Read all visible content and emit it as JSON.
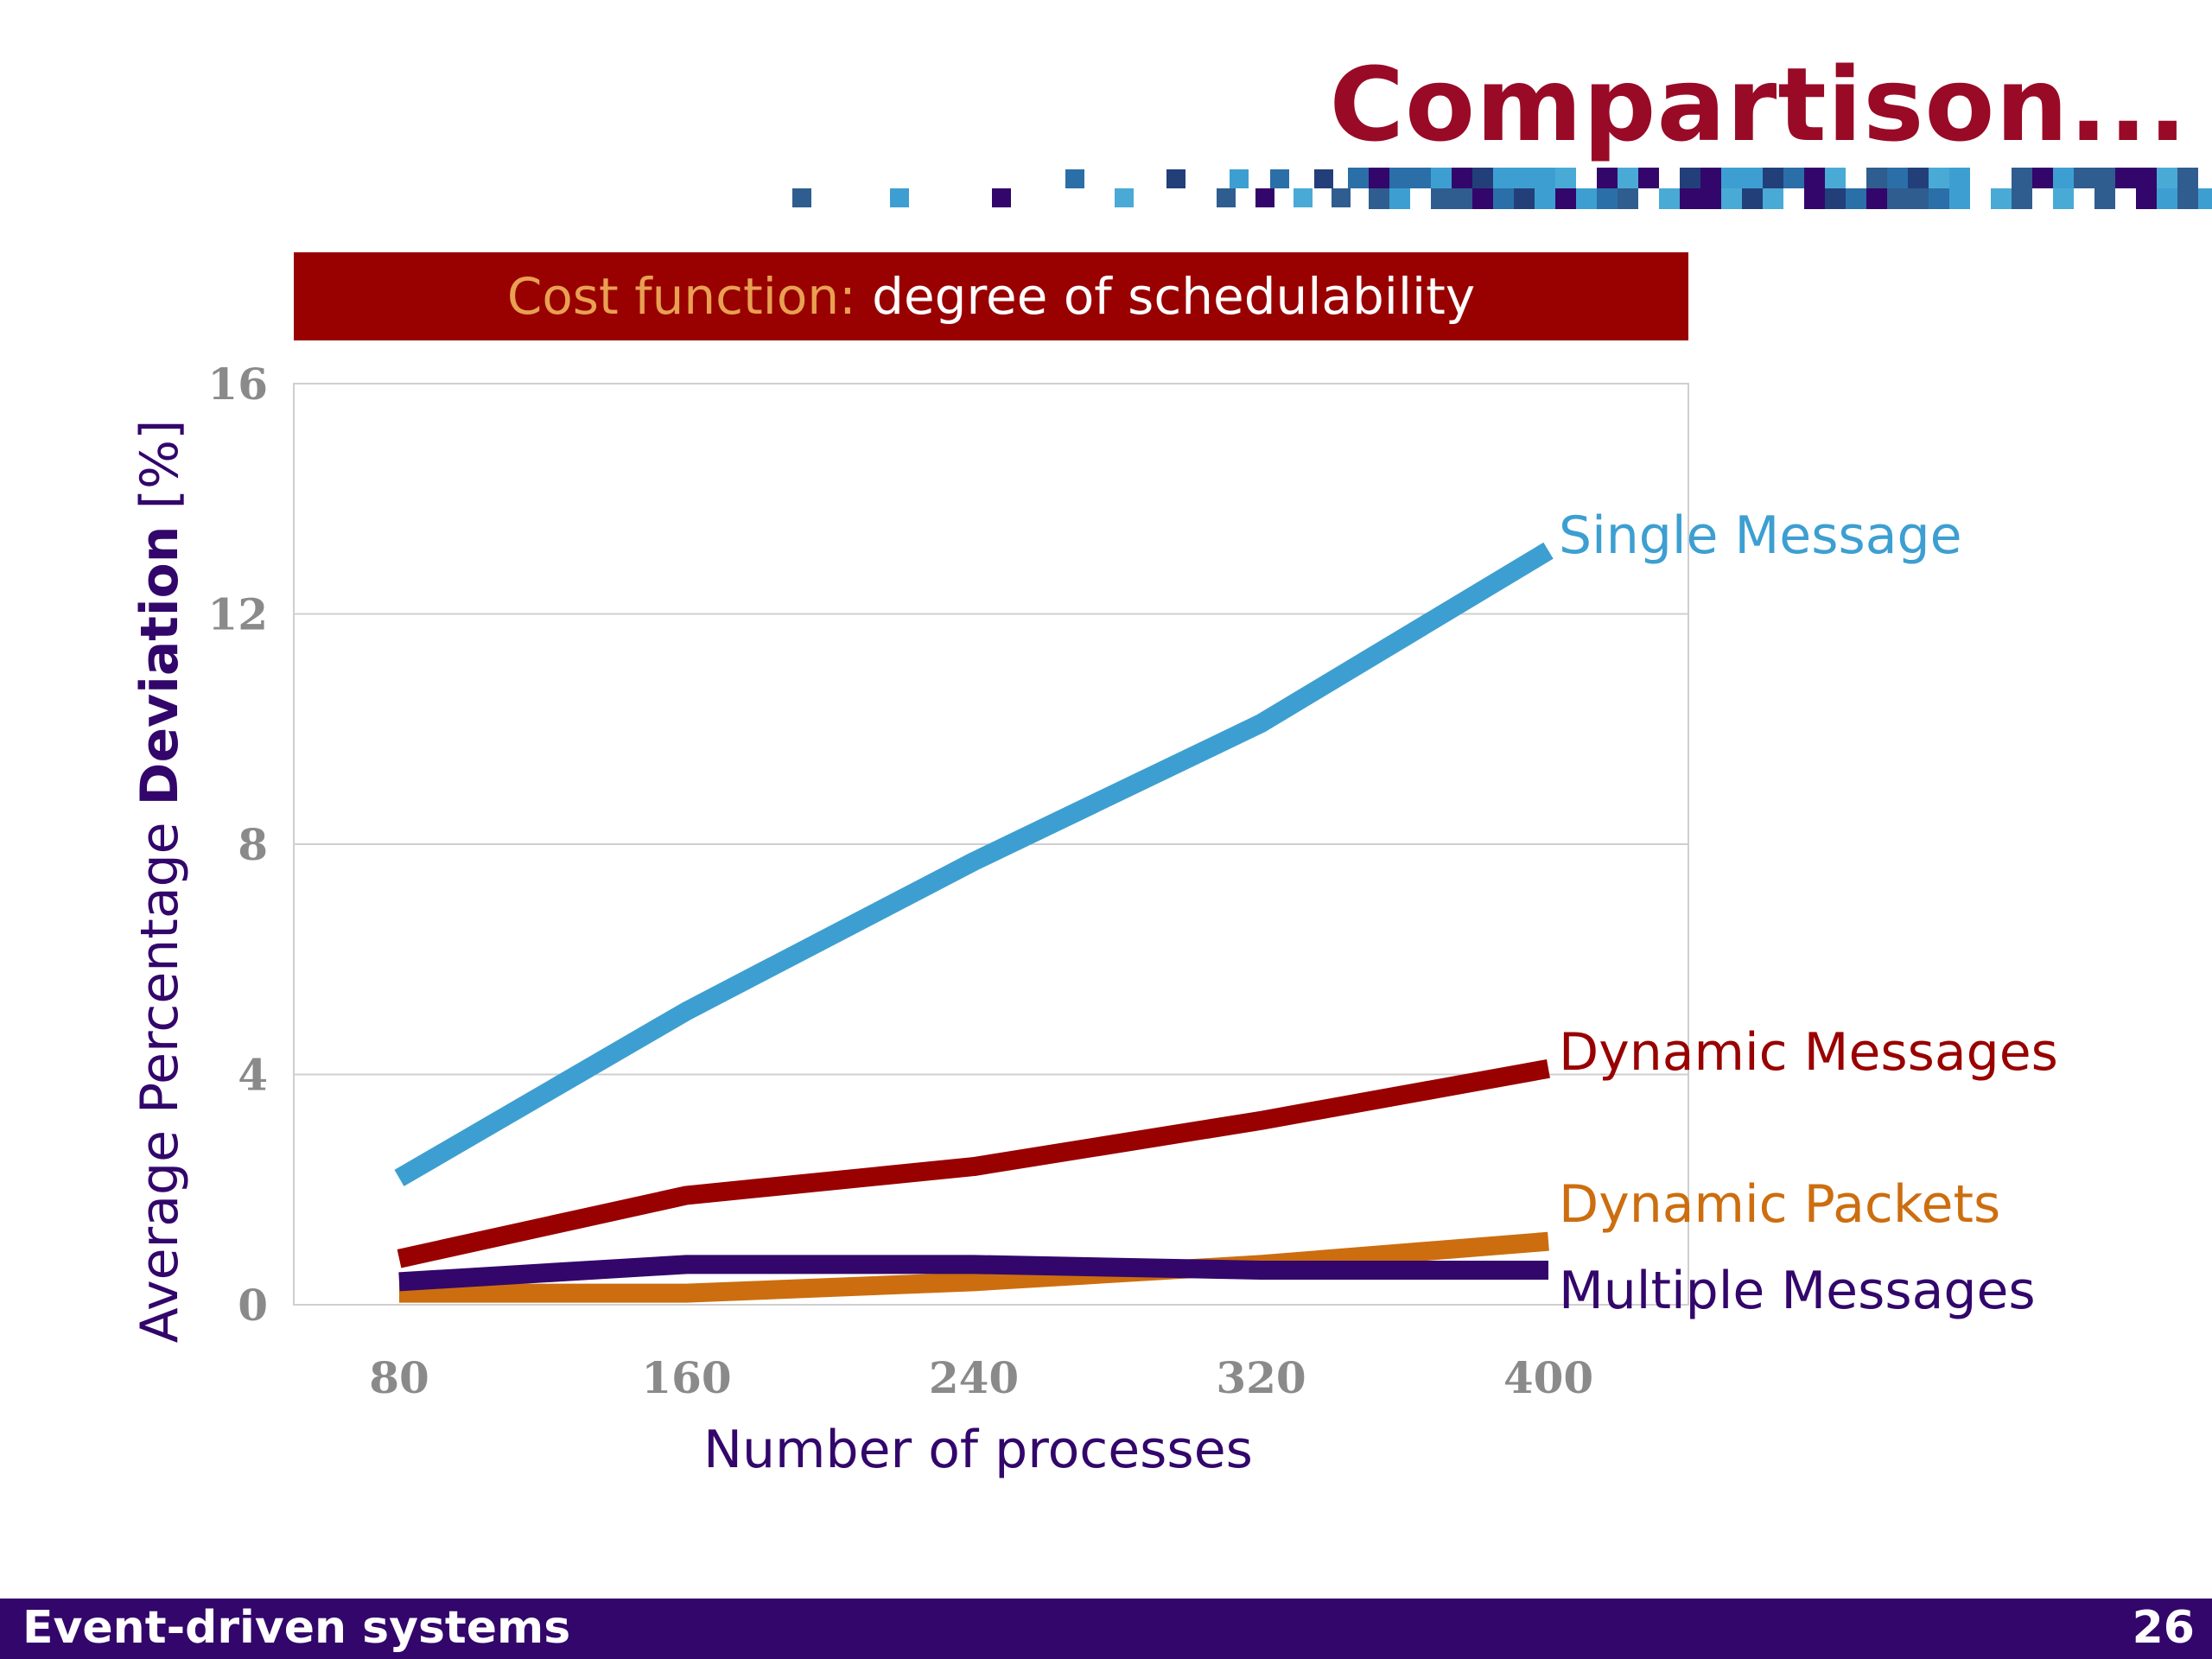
{
  "slide": {
    "title": "Compartison...",
    "footer_title": "Event-driven systems",
    "page_number": "26"
  },
  "banner": {
    "highlight": "Cost function:",
    "text": "degree of schedulability"
  },
  "colors": {
    "title": "#990a26",
    "footer": "#33066b",
    "banner": "#990000",
    "banner_highlight": "#e8a052"
  },
  "chart_data": {
    "type": "line",
    "title": "",
    "xlabel": "Number of processes",
    "ylabel_prefix": "Average Percentage ",
    "ylabel_bold": "Deviation",
    "ylabel_suffix": " [%]",
    "x": [
      80,
      160,
      240,
      320,
      400
    ],
    "x_tick_labels": [
      "80",
      "160",
      "240",
      "320",
      "400"
    ],
    "y_ticks": [
      0,
      4,
      8,
      12,
      16
    ],
    "y_tick_labels": [
      "0",
      "4",
      "8",
      "12",
      "16"
    ],
    "ylim": [
      0,
      16
    ],
    "grid": "horizontal",
    "legend": "inline labels at line ends",
    "series": [
      {
        "name": "Single Message",
        "color": "#3d9fd1",
        "values": [
          2.2,
          5.1,
          7.7,
          10.1,
          13.1
        ]
      },
      {
        "name": "Dynamic Messages",
        "color": "#990000",
        "values": [
          0.8,
          1.9,
          2.4,
          3.2,
          4.1
        ]
      },
      {
        "name": "Dynamic Packets",
        "color": "#cc6e0f",
        "values": [
          0.2,
          0.2,
          0.4,
          0.7,
          1.1
        ]
      },
      {
        "name": "Multiple Messages",
        "color": "#33066b",
        "values": [
          0.4,
          0.7,
          0.7,
          0.6,
          0.6
        ]
      }
    ]
  }
}
